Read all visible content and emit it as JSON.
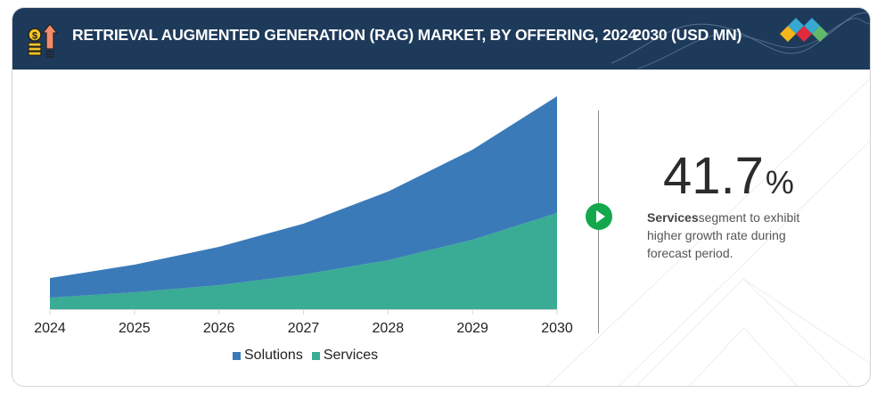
{
  "header": {
    "title_part1": "RETRIEVAL AUGMENTED GENERATION (RAG) MARKET, BY OFFERING, 202",
    "title_overlap": "4-",
    "title_part2": "2030 (USD MN)",
    "icon": "coins-growth-arrow-icon",
    "logo": "diamond-logo-icon"
  },
  "highlight": {
    "value": "41.7",
    "unit": "%",
    "segment": "Services",
    "text": "segment to exhibit higher growth rate during forecast period.",
    "icon": "play-icon"
  },
  "colors": {
    "header_bg": "#1e3a5a",
    "solutions": "#3a7ab8",
    "services": "#3aab94",
    "accent_green": "#13a84b",
    "logo": [
      "#f3b71c",
      "#e12a3c",
      "#35a9d0",
      "#62b86a"
    ]
  },
  "chart_data": {
    "type": "area",
    "stacked": true,
    "title": "Retrieval Augmented Generation (RAG) Market, by Offering, 2024-2030 (USD MN)",
    "xlabel": "",
    "ylabel": "",
    "y_axis_shown": false,
    "value_note": "relative values estimated from area heights; no y-axis scale shown",
    "categories": [
      "2024",
      "2025",
      "2026",
      "2027",
      "2028",
      "2029",
      "2030"
    ],
    "series": [
      {
        "name": "Services",
        "color": "#3aab94",
        "values": [
          13,
          19,
          27,
          39,
          55,
          78,
          108
        ]
      },
      {
        "name": "Solutions",
        "color": "#3a7ab8",
        "values": [
          22,
          31,
          43,
          57,
          77,
          101,
          131
        ]
      }
    ],
    "ylim": [
      0,
      239
    ],
    "grid": false,
    "legend": {
      "position": "bottom",
      "entries": [
        "Solutions",
        "Services"
      ]
    }
  }
}
